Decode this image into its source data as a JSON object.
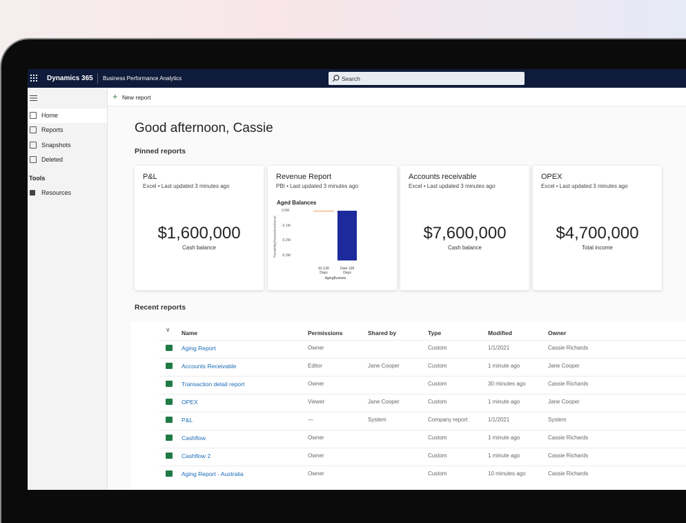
{
  "header": {
    "app": "Dynamics 365",
    "product": "Business Performance Analytics",
    "search": "Search"
  },
  "command_bar": {
    "new_report": "New report"
  },
  "nav": {
    "items": [
      "Home",
      "Reports",
      "Snapshots",
      "Deleted"
    ],
    "section": "Tools",
    "section_items": [
      "Resources"
    ]
  },
  "greeting": "Good afternoon, Cassie",
  "pinned": {
    "title": "Pinned reports",
    "cards": [
      {
        "title": "P&L",
        "subtitle": "Excel • Last updated 3 minutes ago",
        "value": "$1,600,000",
        "caption": "Cash balance"
      },
      {
        "title": "Revenue Report",
        "subtitle": "PBI • Last updated 3 minutes ago"
      },
      {
        "title": "Accounts receivable",
        "subtitle": "Excel • Last updated 3 minutes ago",
        "value": "$7,600,000",
        "caption": "Cash balance"
      },
      {
        "title": "OPEX",
        "subtitle": "Excel • Last updated 3 minutes ago",
        "value": "$4,700,000",
        "caption": "Total income"
      }
    ]
  },
  "chart_data": {
    "type": "bar",
    "title": "Aged Balances",
    "y_label": "RemainingTransactionAmount",
    "x_label": "AgingBuckets",
    "categories": [
      "91-120 Days",
      "Over 120 Days"
    ],
    "values": [
      0,
      -0.33
    ],
    "colors": [
      "#e8a060",
      "#1c2a9c"
    ],
    "ylim": [
      -0.35,
      0
    ],
    "yticks": [
      {
        "value": 0,
        "label": "0.0M"
      },
      {
        "value": -0.1,
        "label": "-0.1M"
      },
      {
        "value": -0.2,
        "label": "-0.2M"
      },
      {
        "value": -0.3,
        "label": "-0.3M"
      }
    ]
  },
  "recent": {
    "title": "Recent reports",
    "columns": [
      "Name",
      "Permissions",
      "Shared by",
      "Type",
      "Modified",
      "Owner"
    ],
    "rows": [
      {
        "name": "Aging Report",
        "permissions": "Owner",
        "type": "Custom",
        "modified": "1/1/2021",
        "owner": "Cassie Richards"
      },
      {
        "name": "Accounts Receivable",
        "permissions": "Editor",
        "shared_by": "Jane Cooper",
        "type": "Custom",
        "modified": "1 minute ago",
        "owner": "Jane Cooper"
      },
      {
        "name": "Transaction detail report",
        "permissions": "Owner",
        "type": "Custom",
        "modified": "30 minutes ago",
        "owner": "Cassie Richards"
      },
      {
        "name": "OPEX",
        "permissions": "Viewer",
        "shared_by": "Jane Cooper",
        "type": "Custom",
        "modified": "1 minute ago",
        "owner": "Jane Cooper"
      },
      {
        "name": "P&L",
        "permissions": "—",
        "shared_by": "System",
        "type": "Company report",
        "modified": "1/1/2021",
        "owner": "System"
      },
      {
        "name": "Cashflow",
        "permissions": "Owner",
        "type": "Custom",
        "modified": "1 minute ago",
        "owner": "Cassie Richards"
      },
      {
        "name": "Cashflow 2",
        "permissions": "Owner",
        "type": "Custom",
        "modified": "1 minute ago",
        "owner": "Cassie Richards"
      },
      {
        "name": "Aging Report - Australia",
        "permissions": "Owner",
        "type": "Custom",
        "modified": "10 minutes ago",
        "owner": "Cassie Richards"
      }
    ]
  }
}
